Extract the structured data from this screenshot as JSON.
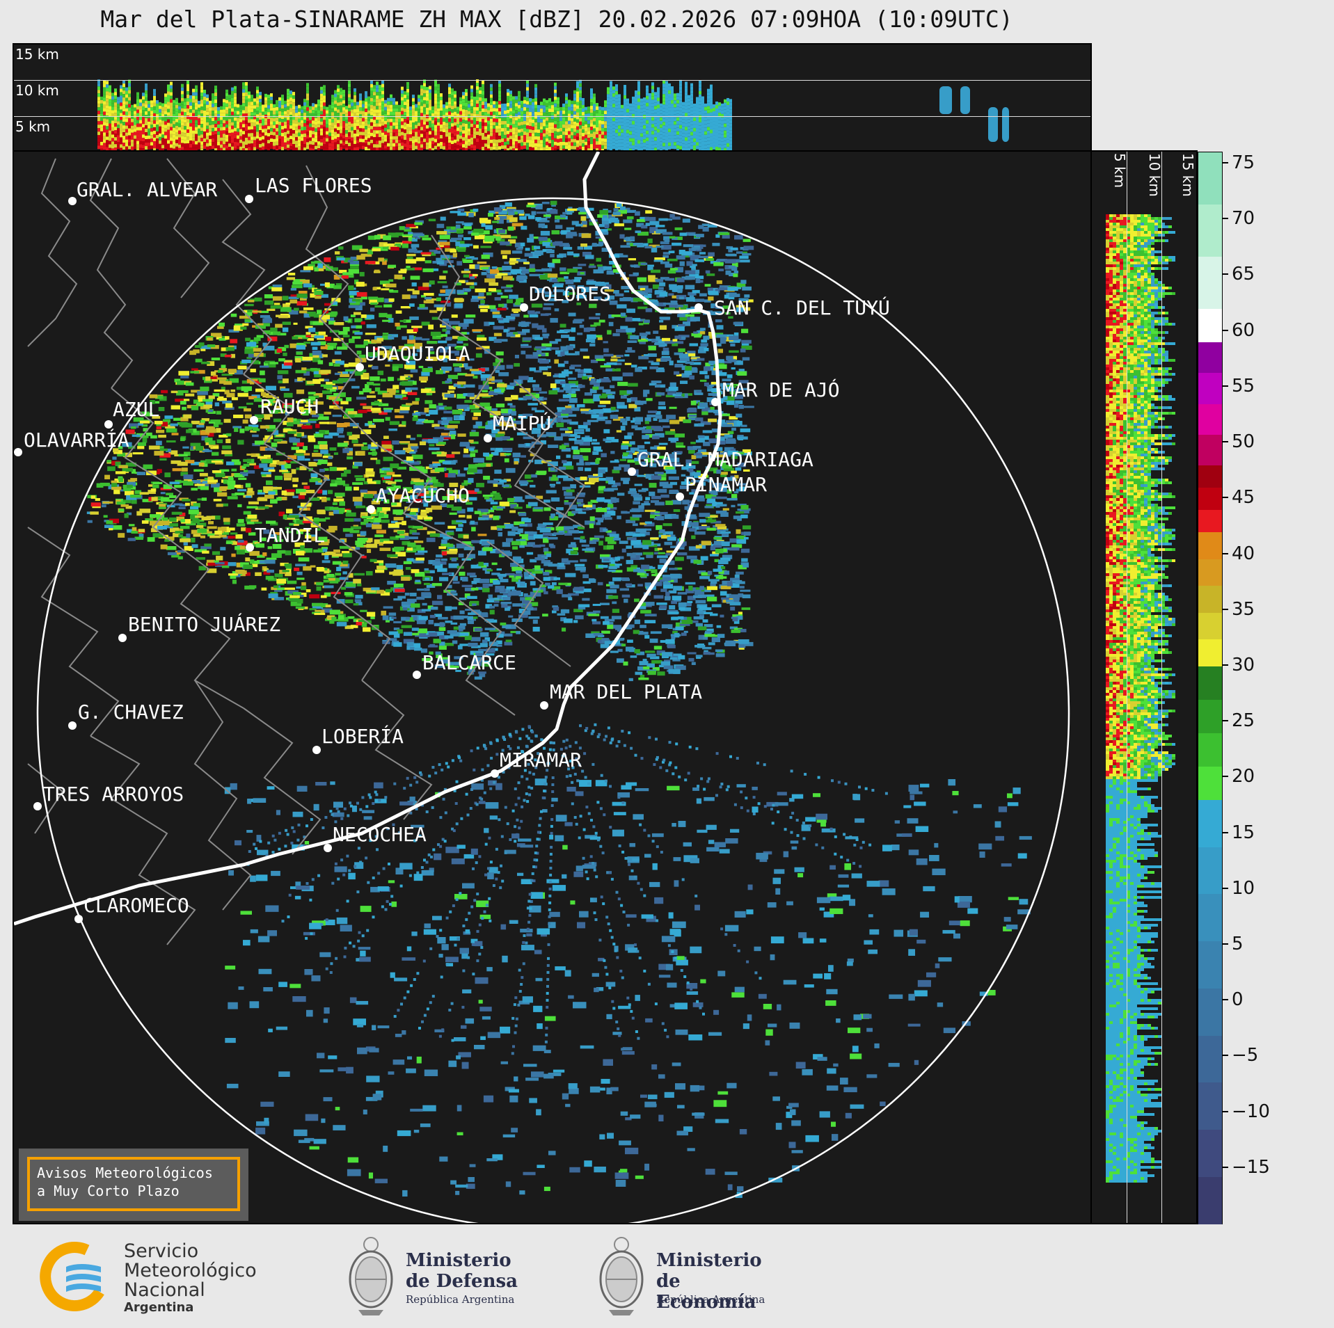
{
  "title": "Mar del Plata-SINARAME ZH MAX [dBZ] 20.02.2026 07:09HOA (10:09UTC)",
  "top_panel": {
    "labels": [
      "15 km",
      "10 km",
      "5 km"
    ]
  },
  "side_panel": {
    "labels": [
      "5 km",
      "10 km",
      "15 km"
    ]
  },
  "cities": [
    {
      "name": "GRAL. ALVEAR"
    },
    {
      "name": "LAS FLORES"
    },
    {
      "name": "DOLORES"
    },
    {
      "name": "SAN C. DEL TUYÚ"
    },
    {
      "name": "UDAQUIOLA"
    },
    {
      "name": "MAR DE AJÓ"
    },
    {
      "name": "AZUL"
    },
    {
      "name": "RAUCH"
    },
    {
      "name": "MAIPÚ"
    },
    {
      "name": "OLAVARRÍA"
    },
    {
      "name": "GRAL. MADARIAGA"
    },
    {
      "name": "PINAMAR"
    },
    {
      "name": "AYACUCHO"
    },
    {
      "name": "TANDIL"
    },
    {
      "name": "BENITO JUÁREZ"
    },
    {
      "name": "BALCARCE"
    },
    {
      "name": "MAR DEL PLATA"
    },
    {
      "name": "G. CHAVEZ"
    },
    {
      "name": "LOBERÍA"
    },
    {
      "name": "MIRAMAR"
    },
    {
      "name": "TRES ARROYOS"
    },
    {
      "name": "NECOCHEA"
    },
    {
      "name": "CLAROMECO"
    }
  ],
  "colorbar": {
    "unit": "dBZ",
    "min": -20,
    "max": 76,
    "ticks": [
      "75",
      "70",
      "65",
      "60",
      "55",
      "50",
      "45",
      "40",
      "35",
      "30",
      "25",
      "20",
      "15",
      "10",
      "5",
      "0",
      "−5",
      "−10",
      "−15"
    ],
    "tick_values": [
      75,
      70,
      65,
      60,
      55,
      50,
      45,
      40,
      35,
      30,
      25,
      20,
      15,
      10,
      5,
      0,
      -5,
      -10,
      -15
    ],
    "bands": [
      {
        "from": -20,
        "to": 18,
        "colors": [
          "#3a3d6e",
          "#3f4a7e",
          "#3f5a8c",
          "#3d6898",
          "#3b76a4",
          "#3a83b0",
          "#3990bc",
          "#379dc8",
          "#35aad4"
        ]
      },
      {
        "from": 18,
        "to": 30,
        "colors": [
          "#4ee03a",
          "#3cc030",
          "#2ea028",
          "#268022"
        ]
      },
      {
        "from": 30,
        "to": 42,
        "colors": [
          "#f0ee30",
          "#d8d030",
          "#c8b428",
          "#d89a20",
          "#e08a18"
        ]
      },
      {
        "from": 42,
        "to": 48,
        "colors": [
          "#e81820",
          "#c00010",
          "#a00010"
        ]
      },
      {
        "from": 48,
        "to": 59,
        "colors": [
          "#c00060",
          "#e000a0",
          "#c000c0",
          "#9000a0"
        ]
      },
      {
        "from": 59,
        "to": 62,
        "colors": [
          "#ffffff"
        ]
      },
      {
        "from": 62,
        "to": 76,
        "colors": [
          "#d8f4e8",
          "#b0eccc",
          "#90e0bc"
        ]
      }
    ]
  },
  "avisos": {
    "line1": "Avisos Meteorológicos",
    "line2": "a Muy Corto Plazo"
  },
  "logos": {
    "smn": {
      "line1": "Servicio",
      "line2": "Meteorológico",
      "line3": "Nacional",
      "line4": "Argentina"
    },
    "defensa": {
      "line1": "Ministerio",
      "line2": "de Defensa",
      "line3": "República Argentina"
    },
    "economia": {
      "line1": "Ministerio",
      "line2": "de Economía",
      "line3": "República Argentina"
    }
  }
}
